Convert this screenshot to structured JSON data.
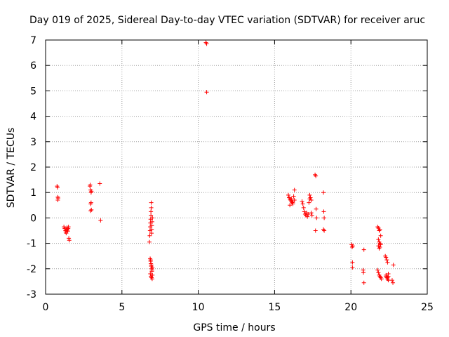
{
  "chart_data": {
    "type": "scatter",
    "title": "Day 019 of 2025, Sidereal Day-to-day VTEC variation (SDTVAR) for receiver aruc",
    "xlabel": "GPS time / hours",
    "ylabel": "SDTVAR / TECUs",
    "xlim": [
      0,
      25
    ],
    "ylim": [
      -3,
      7
    ],
    "xticks": [
      0,
      5,
      10,
      15,
      20,
      25
    ],
    "yticks": [
      -3,
      -2,
      -1,
      0,
      1,
      2,
      3,
      4,
      5,
      6,
      7
    ],
    "grid": true,
    "marker": "+",
    "color": "#ff0000",
    "series": [
      {
        "name": "SDTVAR",
        "x": [
          0.75,
          0.78,
          0.8,
          0.82,
          0.8,
          1.2,
          1.25,
          1.3,
          1.32,
          1.35,
          1.38,
          1.4,
          1.42,
          1.45,
          1.48,
          1.5,
          1.52,
          1.55,
          2.9,
          2.92,
          2.95,
          2.98,
          3.0,
          2.95,
          2.98,
          3.0,
          2.95,
          3.55,
          3.6,
          6.8,
          6.82,
          6.84,
          6.85,
          6.86,
          6.88,
          6.9,
          6.9,
          6.92,
          6.92,
          6.94,
          6.95,
          6.96,
          6.98,
          7.0,
          6.85,
          6.88,
          6.9,
          6.92,
          6.95,
          6.97,
          6.99,
          6.86,
          6.9,
          6.94,
          6.98,
          6.88,
          6.92,
          6.96,
          7.0,
          10.5,
          10.55,
          10.55,
          15.9,
          15.95,
          16.0,
          16.05,
          16.1,
          16.15,
          16.2,
          16.25,
          16.3,
          16.0,
          16.1,
          16.2,
          16.3,
          16.8,
          16.85,
          16.9,
          16.95,
          17.0,
          17.05,
          17.1,
          17.15,
          17.2,
          17.25,
          17.3,
          17.35,
          17.4,
          17.45,
          17.3,
          17.4,
          17.65,
          17.7,
          17.72,
          17.75,
          17.68,
          18.2,
          18.22,
          18.25,
          18.2,
          18.25,
          20.05,
          20.08,
          20.1,
          20.1,
          20.12,
          20.8,
          20.82,
          20.85,
          20.85,
          21.75,
          21.8,
          21.85,
          21.9,
          21.95,
          21.8,
          21.85,
          21.9,
          21.95,
          21.8,
          21.85,
          21.9,
          21.75,
          21.8,
          21.85,
          21.9,
          21.95,
          22.0,
          22.25,
          22.3,
          22.35,
          22.4,
          22.45,
          22.3,
          22.35,
          22.4,
          22.45,
          22.3,
          22.4,
          22.45,
          22.7,
          22.75,
          22.78
        ],
        "y": [
          1.25,
          1.2,
          0.82,
          0.78,
          0.7,
          -0.35,
          -0.42,
          -0.5,
          -0.55,
          -0.6,
          -0.45,
          -0.38,
          -0.48,
          -0.52,
          -0.42,
          -0.35,
          -0.8,
          -0.88,
          1.25,
          1.3,
          1.1,
          1.0,
          1.05,
          0.55,
          0.6,
          0.32,
          0.28,
          1.35,
          -0.1,
          -0.95,
          -0.7,
          -0.5,
          -0.35,
          -0.2,
          -0.05,
          0.1,
          0.25,
          0.4,
          0.6,
          -0.6,
          -0.45,
          -0.3,
          -0.15,
          0.0,
          -1.6,
          -1.7,
          -1.8,
          -1.9,
          -2.0,
          -2.05,
          -1.95,
          -2.2,
          -2.3,
          -2.35,
          -2.4,
          -1.65,
          -1.85,
          -2.1,
          -2.25,
          6.9,
          6.85,
          4.95,
          0.9,
          0.8,
          0.75,
          0.7,
          0.65,
          0.6,
          0.55,
          0.85,
          1.1,
          0.5,
          0.75,
          0.62,
          0.7,
          0.65,
          0.55,
          0.4,
          0.25,
          0.15,
          0.1,
          0.2,
          0.05,
          0.15,
          0.6,
          0.9,
          0.8,
          0.7,
          0.1,
          0.75,
          0.2,
          1.7,
          1.65,
          0.35,
          0.0,
          -0.5,
          1.0,
          0.25,
          0.0,
          -0.45,
          -0.5,
          -1.05,
          -1.15,
          -1.75,
          -1.95,
          -1.1,
          -2.05,
          -2.15,
          -2.55,
          -1.25,
          -0.35,
          -0.4,
          -0.5,
          -0.45,
          -0.7,
          -0.85,
          -0.95,
          -1.0,
          -1.05,
          -1.1,
          -1.2,
          -1.15,
          -2.05,
          -2.15,
          -2.25,
          -2.3,
          -2.35,
          -2.4,
          -1.5,
          -1.55,
          -1.65,
          -1.75,
          -2.2,
          -2.3,
          -2.35,
          -2.4,
          -2.45,
          -2.25,
          -2.35,
          -2.3,
          -2.45,
          -2.55,
          -1.85
        ]
      }
    ]
  }
}
